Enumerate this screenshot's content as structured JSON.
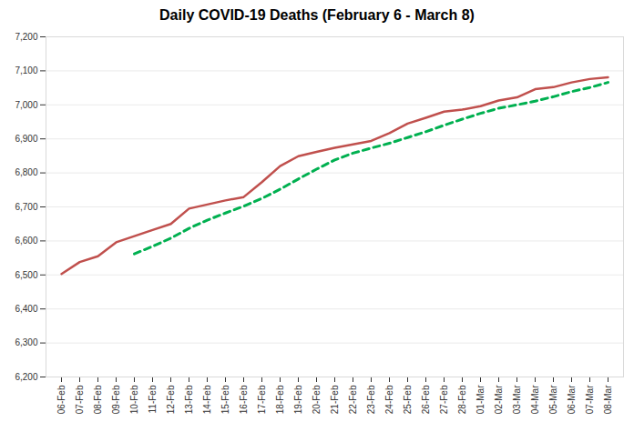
{
  "chart_data": {
    "type": "line",
    "title": "Daily COVID-19 Deaths (February 6 - March 8)",
    "x": [
      "06-Feb",
      "07-Feb",
      "08-Feb",
      "09-Feb",
      "10-Feb",
      "11-Feb",
      "12-Feb",
      "13-Feb",
      "14-Feb",
      "15-Feb",
      "16-Feb",
      "17-Feb",
      "18-Feb",
      "19-Feb",
      "20-Feb",
      "21-Feb",
      "22-Feb",
      "23-Feb",
      "24-Feb",
      "25-Feb",
      "26-Feb",
      "27-Feb",
      "28-Feb",
      "01-Mar",
      "02-Mar",
      "03-Mar",
      "04-Mar",
      "05-Mar",
      "06-Mar",
      "07-Mar",
      "08-Mar"
    ],
    "series": [
      {
        "color": "#c0504d",
        "line_style": "solid",
        "values": [
          6503,
          6538,
          6555,
          6596,
          6614,
          6632,
          6650,
          6695,
          6707,
          6719,
          6729,
          6773,
          6820,
          6849,
          6862,
          6874,
          6884,
          6894,
          6917,
          6945,
          6962,
          6980,
          6986,
          6996,
          7013,
          7022,
          7046,
          7052,
          7066,
          7076,
          7081
        ]
      },
      {
        "color": "#00b050",
        "line_style": "dashed",
        "values": [
          null,
          null,
          null,
          null,
          6562,
          6584,
          6608,
          6637,
          6661,
          6682,
          6702,
          6725,
          6752,
          6782,
          6811,
          6838,
          6858,
          6873,
          6887,
          6904,
          6921,
          6940,
          6958,
          6975,
          6990,
          7000,
          7011,
          7024,
          7039,
          7051,
          7066
        ]
      }
    ],
    "ylim": [
      6200,
      7200
    ],
    "yticks": [
      {
        "value": 6200,
        "label": "6,200"
      },
      {
        "value": 6300,
        "label": "6,300"
      },
      {
        "value": 6400,
        "label": "6,400"
      },
      {
        "value": 6500,
        "label": "6,500"
      },
      {
        "value": 6600,
        "label": "6,600"
      },
      {
        "value": 6700,
        "label": "6,700"
      },
      {
        "value": 6800,
        "label": "6,800"
      },
      {
        "value": 6900,
        "label": "6,900"
      },
      {
        "value": 7000,
        "label": "7,000"
      },
      {
        "value": 7100,
        "label": "7,100"
      },
      {
        "value": 7200,
        "label": "7,200"
      }
    ],
    "grid": true
  }
}
